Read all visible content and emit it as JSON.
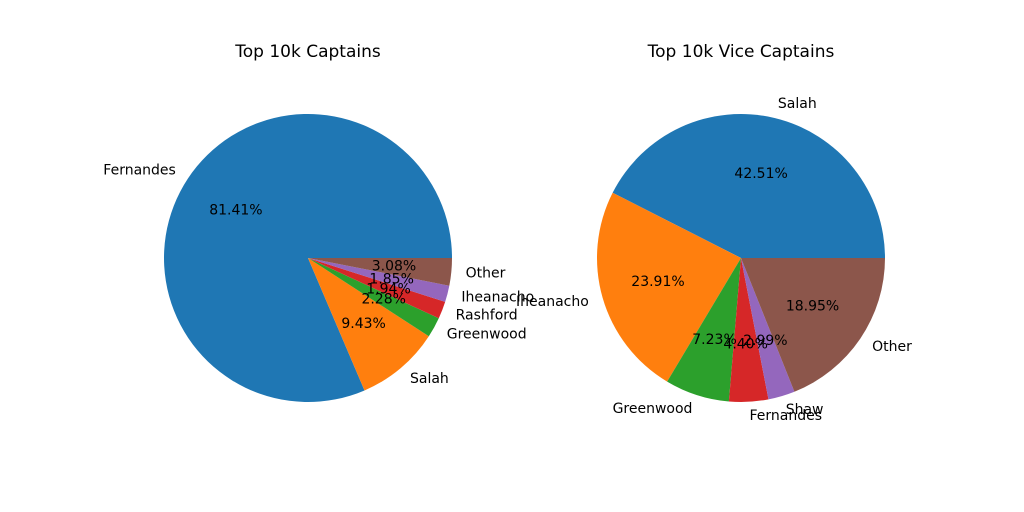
{
  "colors": [
    "#1f77b4",
    "#ff7f0e",
    "#2ca02c",
    "#d62728",
    "#9467bd",
    "#8c564b"
  ],
  "chart_data": [
    {
      "type": "pie",
      "title": "Top 10k Captains",
      "labels": [
        "Fernandes",
        "Salah",
        "Greenwood",
        "Rashford",
        "Iheanacho",
        "Other"
      ],
      "values": [
        81.41,
        9.43,
        2.28,
        1.94,
        1.85,
        3.08
      ],
      "value_labels": [
        "81.41%",
        "9.43%",
        "2.28%",
        "1.94%",
        "1.85%",
        "3.08%"
      ],
      "start_angle": 0,
      "direction": "counterclockwise"
    },
    {
      "type": "pie",
      "title": "Top 10k Vice Captains",
      "labels": [
        "Salah",
        "Iheanacho",
        "Greenwood",
        "Fernandes",
        "Shaw",
        "Other"
      ],
      "values": [
        42.51,
        23.91,
        7.23,
        4.4,
        2.99,
        18.95
      ],
      "value_labels": [
        "42.51%",
        "23.91%",
        "7.23%",
        "4.40%",
        "2.99%",
        "18.95%"
      ],
      "start_angle": 0,
      "direction": "counterclockwise"
    }
  ]
}
